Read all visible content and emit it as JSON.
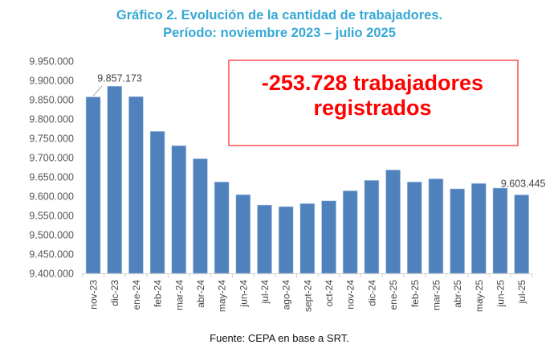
{
  "chart_data": {
    "type": "bar",
    "title": "Gráfico 2. Evolución de la cantidad de trabajadores.",
    "subtitle": "Período: noviembre 2023 – julio 2025",
    "xlabel": "",
    "ylabel": "",
    "ylim": [
      9400000,
      9950000
    ],
    "yticks": [
      9400000,
      9450000,
      9500000,
      9550000,
      9600000,
      9650000,
      9700000,
      9750000,
      9800000,
      9850000,
      9900000,
      9950000
    ],
    "ytick_labels": [
      "9.400.000",
      "9.450.000",
      "9.500.000",
      "9.550.000",
      "9.600.000",
      "9.650.000",
      "9.700.000",
      "9.750.000",
      "9.800.000",
      "9.850.000",
      "9.900.000",
      "9.950.000"
    ],
    "grid": false,
    "color": "#4f81bd",
    "categories": [
      "nov-23",
      "dic-23",
      "ene-24",
      "feb-24",
      "mar-24",
      "abr-24",
      "may-24",
      "jun-24",
      "jul-24",
      "ago-24",
      "sept-24",
      "oct-24",
      "nov-24",
      "dic-24",
      "ene-25",
      "feb-25",
      "mar-25",
      "abr-25",
      "may-25",
      "jun-25",
      "jul-25"
    ],
    "values": [
      9857173,
      9885000,
      9858000,
      9768000,
      9731000,
      9697000,
      9637000,
      9604000,
      9577000,
      9573000,
      9581000,
      9588000,
      9614000,
      9641000,
      9668000,
      9637000,
      9645000,
      9619000,
      9633000,
      9621000,
      9603445
    ],
    "data_labels": [
      {
        "category": "nov-23",
        "text": "9.857.173"
      },
      {
        "category": "jul-25",
        "text": "9.603.445"
      }
    ],
    "annotation": {
      "line1": "-253.728 trabajadores",
      "line2": "registrados",
      "color": "#ff0000"
    },
    "source": "Fuente: CEPA en base a SRT."
  }
}
